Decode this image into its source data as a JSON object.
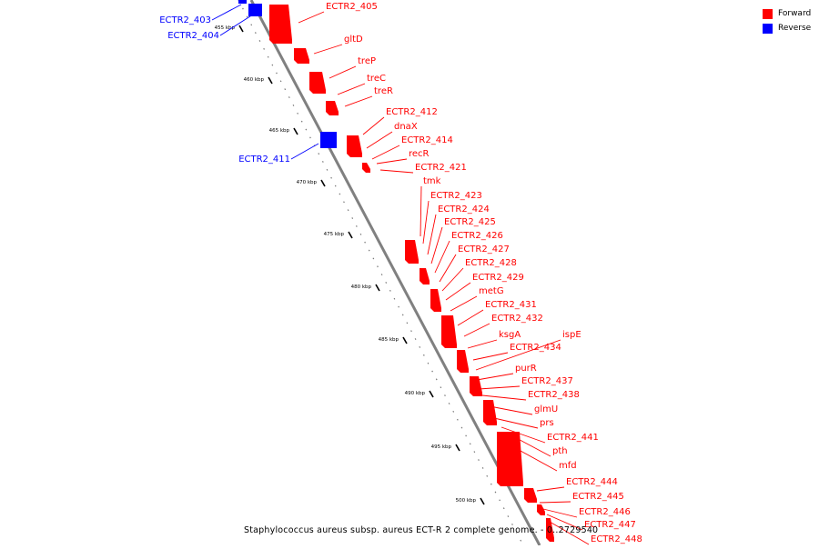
{
  "caption": "Staphylococcus aureus subsp. aureus ECT-R 2 complete genome. - 0..2729540",
  "legend": [
    {
      "label": "Forward",
      "color": "#ff0000"
    },
    {
      "label": "Reverse",
      "color": "#0000ff"
    }
  ],
  "colors": {
    "forward": "#ff0000",
    "reverse": "#0000ff",
    "backbone": "#808080"
  },
  "ticks": [
    "455 kbp",
    "460 kbp",
    "465 kbp",
    "470 kbp",
    "475 kbp",
    "480 kbp",
    "485 kbp",
    "490 kbp",
    "495 kbp",
    "500 kbp"
  ],
  "forward_genes": [
    "ECTR2_405",
    "gltD",
    "treP",
    "treC",
    "treR",
    "ECTR2_412",
    "dnaX",
    "ECTR2_414",
    "recR",
    "ECTR2_421",
    "tmk",
    "ECTR2_423",
    "ECTR2_424",
    "ECTR2_425",
    "ECTR2_426",
    "ECTR2_427",
    "ECTR2_428",
    "ECTR2_429",
    "metG",
    "ECTR2_431",
    "ECTR2_432",
    "ksgA",
    "ECTR2_434",
    "ispE",
    "purR",
    "ECTR2_437",
    "ECTR2_438",
    "glmU",
    "prs",
    "ECTR2_441",
    "pth",
    "mfd",
    "ECTR2_444",
    "ECTR2_445",
    "ECTR2_446",
    "ECTR2_447",
    "ECTR2_448"
  ],
  "reverse_genes": [
    "ECTR2_403",
    "ECTR2_404",
    "ECTR2_411"
  ]
}
